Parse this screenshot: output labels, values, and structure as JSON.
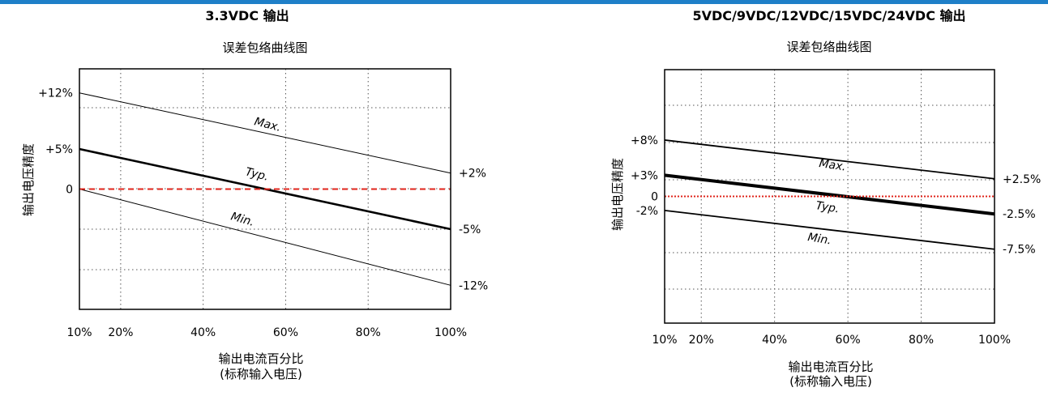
{
  "chart_data": [
    {
      "type": "line",
      "title": "3.3VDC 输出",
      "subtitle": "误差包络曲线图",
      "ylabel": "输出电压精度",
      "xlabel": "输出电流百分比",
      "xlabel_sub": "(标称输入电压)",
      "xlim": [
        10,
        100
      ],
      "ylim": [
        -15,
        15
      ],
      "x_ticks": [
        10,
        20,
        40,
        60,
        80,
        100
      ],
      "x_tick_labels": [
        "10%",
        "20%",
        "40%",
        "60%",
        "80%",
        "100%"
      ],
      "grid": true,
      "left_tick_labels": [
        {
          "value": 12,
          "label": "+12%"
        },
        {
          "value": 5,
          "label": "+5%"
        },
        {
          "value": 0,
          "label": "0"
        }
      ],
      "right_tick_labels": [
        {
          "value": 2,
          "label": "+2%"
        },
        {
          "value": -5,
          "label": "-5%"
        },
        {
          "value": -12,
          "label": "-12%"
        }
      ],
      "series": [
        {
          "name": "Max.",
          "x": [
            10,
            100
          ],
          "y": [
            12,
            2
          ],
          "color": "#000000",
          "style": "thin"
        },
        {
          "name": "Typ.",
          "x": [
            10,
            100
          ],
          "y": [
            5,
            -5
          ],
          "color": "#000000",
          "style": "bold"
        },
        {
          "name": "Min.",
          "x": [
            10,
            100
          ],
          "y": [
            0,
            -12
          ],
          "color": "#000000",
          "style": "thin"
        },
        {
          "name": "",
          "x": [
            10,
            100
          ],
          "y": [
            0,
            0
          ],
          "color": "#e0241b",
          "style": "dashed"
        }
      ]
    },
    {
      "type": "line",
      "title": "5VDC/9VDC/12VDC/15VDC/24VDC 输出",
      "subtitle": "误差包络曲线图",
      "ylabel": "输出电压精度",
      "xlabel": "输出电流百分比",
      "xlabel_sub": "(标称输入电压)",
      "xlim": [
        10,
        100
      ],
      "ylim": [
        -18,
        18
      ],
      "x_ticks": [
        10,
        20,
        40,
        60,
        80,
        100
      ],
      "x_tick_labels": [
        "10%",
        "20%",
        "40%",
        "60%",
        "80%",
        "100%"
      ],
      "grid": true,
      "left_tick_labels": [
        {
          "value": 8,
          "label": "+8%"
        },
        {
          "value": 3,
          "label": "+3%"
        },
        {
          "value": 0,
          "label": "0"
        },
        {
          "value": -2,
          "label": "-2%"
        }
      ],
      "right_tick_labels": [
        {
          "value": 2.5,
          "label": "+2.5%"
        },
        {
          "value": -2.5,
          "label": "-2.5%"
        },
        {
          "value": -7.5,
          "label": "-7.5%"
        }
      ],
      "series": [
        {
          "name": "Max.",
          "x": [
            10,
            100
          ],
          "y": [
            8,
            2.5
          ],
          "color": "#000000",
          "style": "medium"
        },
        {
          "name": "Typ.",
          "x": [
            10,
            100
          ],
          "y": [
            3,
            -2.5
          ],
          "color": "#000000",
          "style": "bold"
        },
        {
          "name": "Min.",
          "x": [
            10,
            100
          ],
          "y": [
            -2,
            -7.5
          ],
          "color": "#000000",
          "style": "medium"
        },
        {
          "name": "",
          "x": [
            10,
            100
          ],
          "y": [
            0,
            0
          ],
          "color": "#e0241b",
          "style": "dotted"
        }
      ]
    }
  ]
}
